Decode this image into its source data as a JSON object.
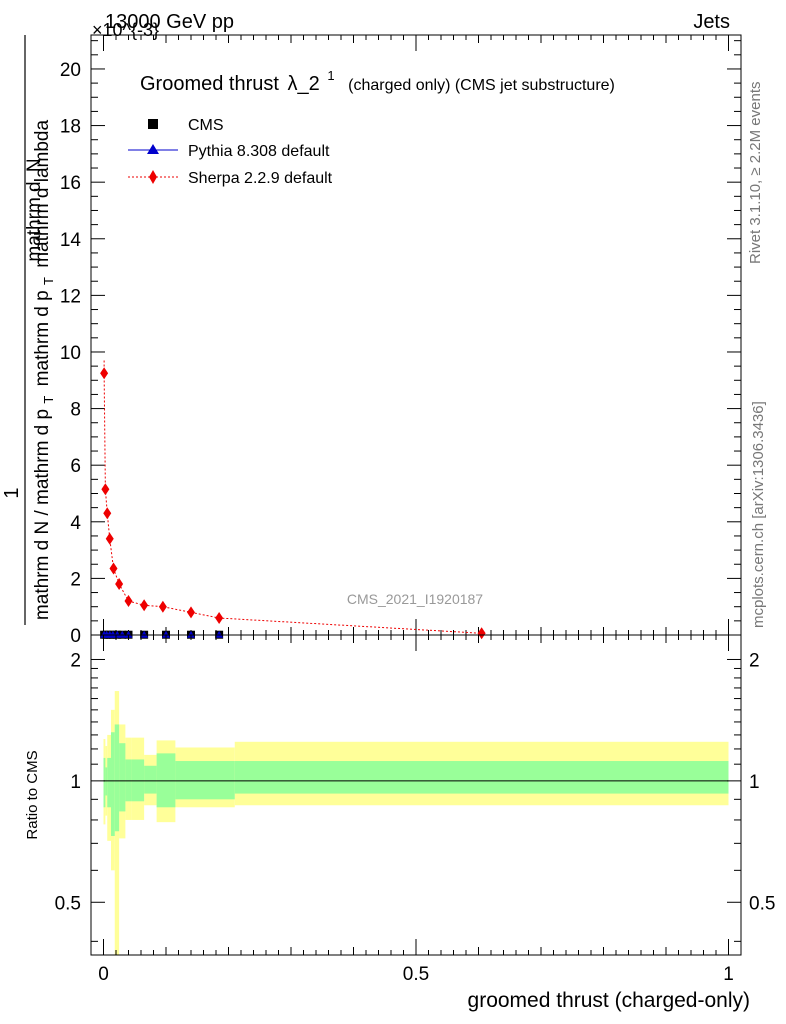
{
  "header": {
    "energy_label": "13000 GeV pp",
    "process_label": "Jets",
    "exponent_label": "×10^{-3}"
  },
  "side_labels": {
    "rivet": "Rivet 3.1.10, ≥ 2.2M events",
    "mcplots": "mcplots.cern.ch [arXiv:1306.3436]"
  },
  "watermark": "CMS_2021_I1920187",
  "chart_data": [
    {
      "type": "scatter",
      "panel": "main",
      "title": "Groomed thrust λ_2^1 (charged only) (CMS jet substructure)",
      "title_main": "Groomed thrust",
      "title_symbol": "λ_2",
      "title_sup": "1",
      "title_rest": "(charged only) (CMS jet substructure)",
      "xlabel": "groomed thrust (charged-only)",
      "ylabel_numerator": "1",
      "ylabel_denominator": "mathrm d N / mathrm d p_T mathrm d p_T mathrm d N / mathrm d lambda",
      "ylabel_num_text": "1",
      "ylabel_num_a": "mathrm d",
      "ylabel_num_b": "N",
      "ylabel_den_a": "mathrm d N / mathrm d p",
      "ylabel_den_sub1": "T",
      "ylabel_den_b": "mathrm d p",
      "ylabel_den_sub2": "T",
      "ylabel_den_c": "mathrm d lambda",
      "xlim": [
        -0.02,
        1.02
      ],
      "ylim": [
        0,
        21.2
      ],
      "y_exponent": -3,
      "yticks": [
        0,
        2,
        4,
        6,
        8,
        10,
        12,
        14,
        16,
        18,
        20
      ],
      "ytick_labels": [
        "0",
        "2",
        "4",
        "6",
        "8",
        "10",
        "12",
        "14",
        "16",
        "18",
        "20"
      ],
      "legend_position": "top-left",
      "series": [
        {
          "name": "CMS",
          "color": "#000000",
          "marker": "square",
          "x": [
            0.001,
            0.005,
            0.01,
            0.015,
            0.022,
            0.03,
            0.04,
            0.065,
            0.1,
            0.14,
            0.185
          ],
          "y": [
            0.01,
            0.01,
            0.01,
            0.01,
            0.01,
            0.01,
            0.01,
            0.01,
            0.01,
            0.01,
            0.01
          ]
        },
        {
          "name": "Pythia 8.308 default",
          "color": "#0000cc",
          "marker": "triangle",
          "x": [
            0.001,
            0.005,
            0.01,
            0.015,
            0.022,
            0.03,
            0.04,
            0.065,
            0.1,
            0.14,
            0.185
          ],
          "y": [
            0.01,
            0.01,
            0.01,
            0.01,
            0.01,
            0.01,
            0.01,
            0.01,
            0.01,
            0.01,
            0.01
          ]
        },
        {
          "name": "Sherpa 2.2.9 default",
          "color": "#ee0000",
          "marker": "diamond",
          "x": [
            0.001,
            0.003,
            0.006,
            0.01,
            0.016,
            0.025,
            0.04,
            0.065,
            0.095,
            0.14,
            0.185,
            0.605
          ],
          "y": [
            9.25,
            5.15,
            4.3,
            3.4,
            2.35,
            1.8,
            1.2,
            1.05,
            1.0,
            0.8,
            0.6,
            0.06
          ]
        }
      ]
    },
    {
      "type": "area",
      "panel": "ratio",
      "ylabel": "Ratio to CMS",
      "xlim": [
        -0.02,
        1.02
      ],
      "ylim": [
        0.37,
        2.3
      ],
      "y_scale": "log",
      "xticks": [
        0,
        0.5,
        1
      ],
      "xtick_labels": [
        "0",
        "0.5",
        "1"
      ],
      "yticks": [
        0.5,
        1,
        2
      ],
      "ytick_labels": [
        "0.5",
        "1",
        "2"
      ],
      "reference_line": 1,
      "bands": {
        "bin_edges": [
          0,
          0.003,
          0.006,
          0.012,
          0.018,
          0.025,
          0.035,
          0.045,
          0.065,
          0.085,
          0.115,
          0.16,
          0.21,
          1.0
        ],
        "inner_low": [
          0.86,
          0.92,
          0.86,
          0.73,
          0.75,
          0.84,
          0.89,
          0.89,
          0.93,
          0.86,
          0.9,
          0.9,
          0.93
        ],
        "inner_high": [
          1.14,
          1.08,
          1.14,
          1.32,
          1.38,
          1.24,
          1.13,
          1.13,
          1.09,
          1.17,
          1.12,
          1.12,
          1.12
        ],
        "outer_low": [
          0.78,
          0.82,
          0.71,
          0.6,
          0.37,
          0.72,
          0.8,
          0.8,
          0.87,
          0.79,
          0.86,
          0.86,
          0.87
        ],
        "outer_high": [
          1.27,
          1.22,
          1.3,
          1.5,
          1.67,
          1.38,
          1.28,
          1.28,
          1.16,
          1.26,
          1.21,
          1.21,
          1.25
        ],
        "inner_color": "#99ff99",
        "outer_color": "#ffff99"
      }
    }
  ]
}
